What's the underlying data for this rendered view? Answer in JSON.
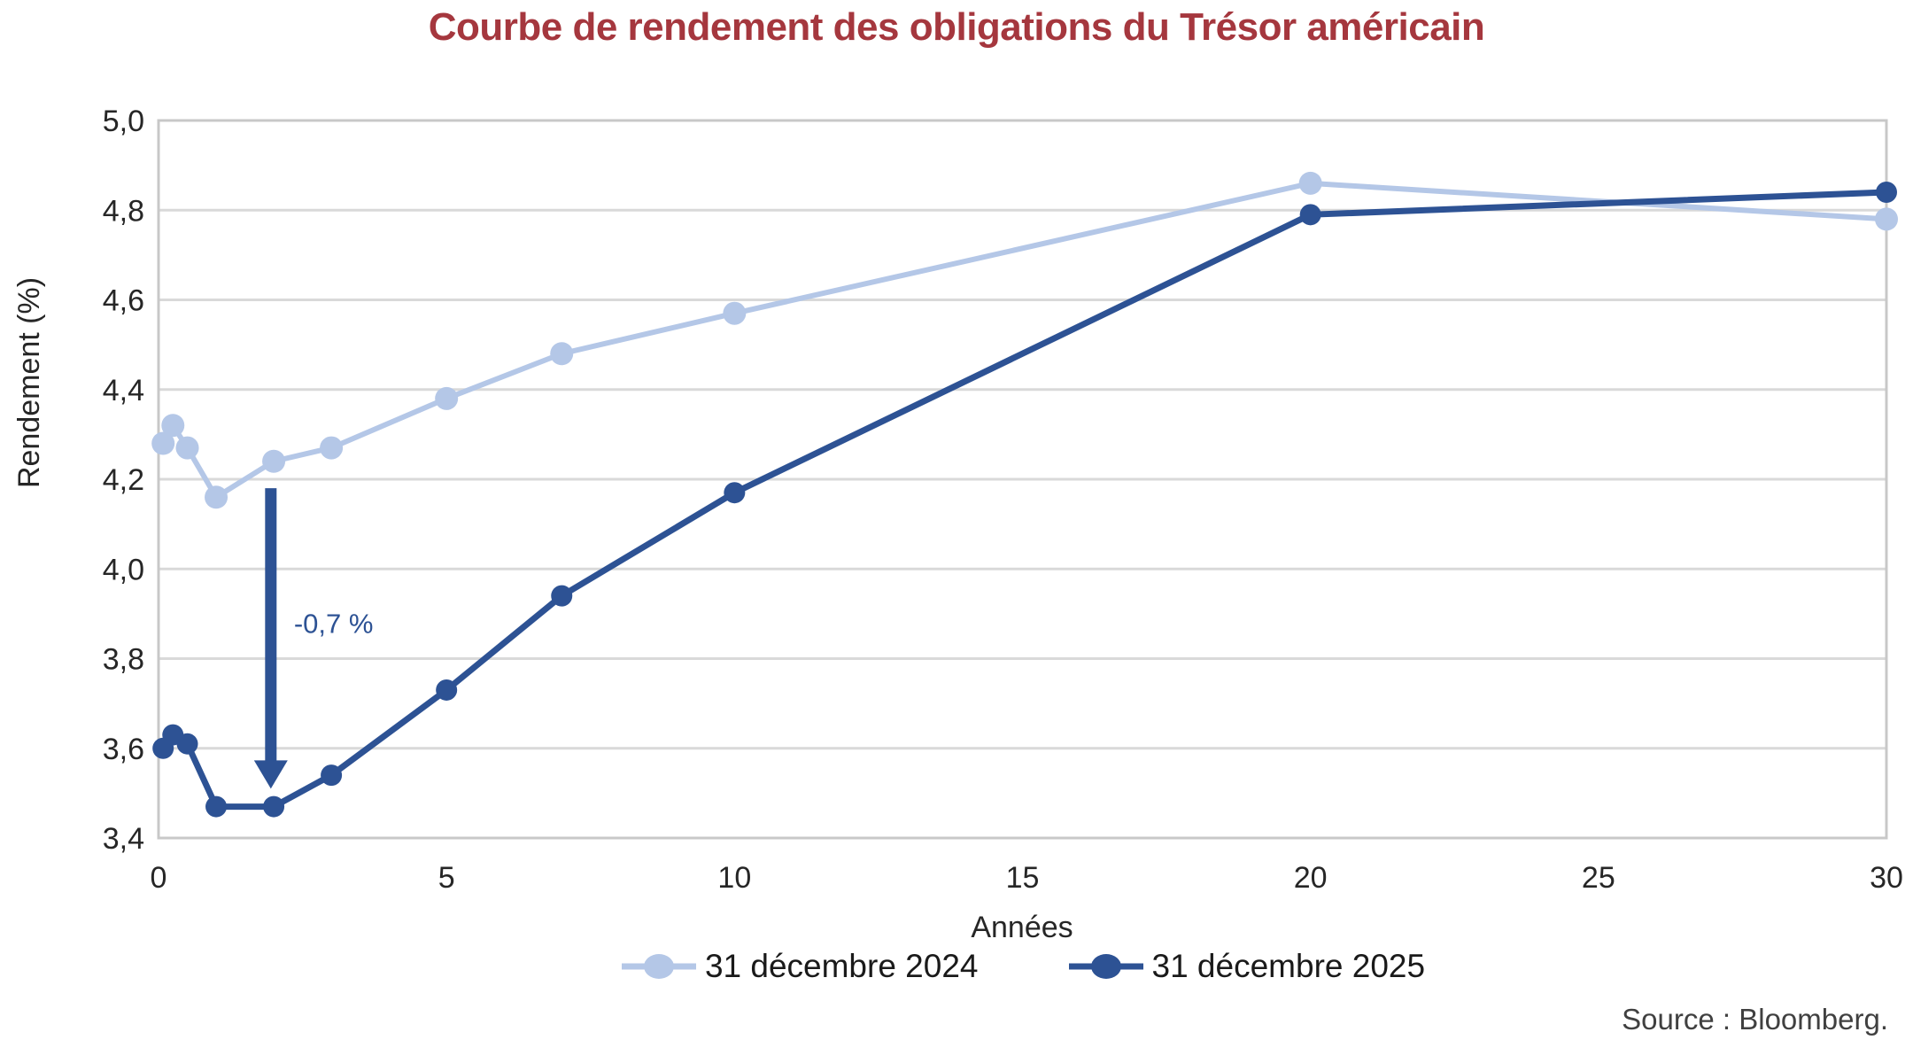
{
  "title": {
    "text": "Courbe de rendement des obligations du Trésor américain"
  },
  "source_note": "Source : Bloomberg.",
  "colors": {
    "title": "#A5373E",
    "gridline": "#D9D9D9",
    "plot_border": "#C8C8C8",
    "tick_text": "#262626",
    "source_text": "#404040"
  },
  "chart_data": {
    "type": "line",
    "title": "Courbe de rendement des obligations du Trésor américain",
    "xlabel": "Années",
    "ylabel": "Rendement (%)",
    "xlim": [
      0,
      30
    ],
    "ylim": [
      3.4,
      5.0
    ],
    "grid": "horizontal",
    "legend_position": "bottom",
    "x_ticks": [
      {
        "value": 0,
        "label": "0"
      },
      {
        "value": 5,
        "label": "5"
      },
      {
        "value": 10,
        "label": "10"
      },
      {
        "value": 15,
        "label": "15"
      },
      {
        "value": 20,
        "label": "20"
      },
      {
        "value": 25,
        "label": "25"
      },
      {
        "value": 30,
        "label": "30"
      }
    ],
    "y_ticks": [
      {
        "value": 3.4,
        "label": "3,4"
      },
      {
        "value": 3.6,
        "label": "3,6"
      },
      {
        "value": 3.8,
        "label": "3,8"
      },
      {
        "value": 4.0,
        "label": "4,0"
      },
      {
        "value": 4.2,
        "label": "4,2"
      },
      {
        "value": 4.4,
        "label": "4,4"
      },
      {
        "value": 4.6,
        "label": "4,6"
      },
      {
        "value": 4.8,
        "label": "4,8"
      },
      {
        "value": 5.0,
        "label": "5,0"
      }
    ],
    "series": [
      {
        "name": "31 décembre 2024",
        "color": "#B4C7E7",
        "x": [
          0.08,
          0.25,
          0.5,
          1,
          2,
          3,
          5,
          7,
          10,
          20,
          30
        ],
        "values": [
          4.28,
          4.32,
          4.27,
          4.16,
          4.24,
          4.27,
          4.38,
          4.48,
          4.57,
          4.86,
          4.78
        ]
      },
      {
        "name": "31 décembre 2025",
        "color": "#2D5294",
        "x": [
          0.08,
          0.25,
          0.5,
          1,
          2,
          3,
          5,
          7,
          10,
          20,
          30
        ],
        "values": [
          3.6,
          3.63,
          3.61,
          3.47,
          3.47,
          3.54,
          3.73,
          3.94,
          4.17,
          4.79,
          4.84
        ]
      }
    ],
    "annotation": {
      "text": "-0,7 %",
      "color": "#2D5294",
      "x": 1.95,
      "arrow_from": 4.18,
      "arrow_to": 3.51
    }
  }
}
